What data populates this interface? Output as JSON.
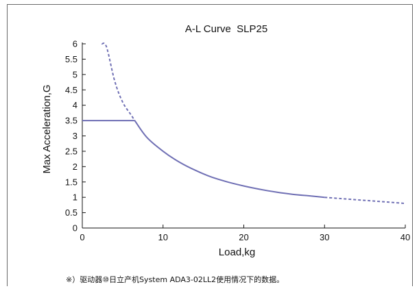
{
  "chart_data": {
    "type": "line",
    "title": "A-L Curve  SLP25",
    "xlabel": "Load,kg",
    "ylabel": "Max Acceleration,G",
    "xlim": [
      0,
      40
    ],
    "ylim": [
      0,
      6
    ],
    "x_ticks": [
      "0",
      "10",
      "20",
      "30",
      "40"
    ],
    "x_tick_values": [
      0,
      10,
      20,
      30,
      40
    ],
    "y_ticks": [
      "0",
      "0.5",
      "1",
      "1.5",
      "2",
      "2.5",
      "3",
      "3.5",
      "4",
      "4.5",
      "5",
      "5.5",
      "6"
    ],
    "y_tick_values": [
      0,
      0.5,
      1,
      1.5,
      2,
      2.5,
      3,
      3.5,
      4,
      4.5,
      5,
      5.5,
      6
    ],
    "grid": false,
    "line_color": "#6f6fb4",
    "series": [
      {
        "style": "solid",
        "x": [
          0,
          6.5
        ],
        "y": [
          3.5,
          3.5
        ]
      },
      {
        "style": "dashed",
        "x": [
          2.4,
          3,
          4,
          5,
          6,
          6.5
        ],
        "y": [
          6.0,
          5.9,
          4.8,
          4.1,
          3.7,
          3.5
        ]
      },
      {
        "style": "solid",
        "x": [
          6.5,
          8,
          10,
          12,
          14,
          16,
          18,
          20,
          22,
          24,
          26,
          28,
          30
        ],
        "y": [
          3.5,
          2.95,
          2.5,
          2.15,
          1.88,
          1.66,
          1.5,
          1.37,
          1.26,
          1.17,
          1.1,
          1.05,
          1.0
        ]
      },
      {
        "style": "dashed",
        "x": [
          30,
          32,
          34,
          36,
          38,
          40
        ],
        "y": [
          1.0,
          0.96,
          0.92,
          0.88,
          0.84,
          0.8
        ]
      }
    ]
  },
  "footnote": "※）驱动器⑩日立产机System ADA3-02LL2使用情况下的数据。"
}
